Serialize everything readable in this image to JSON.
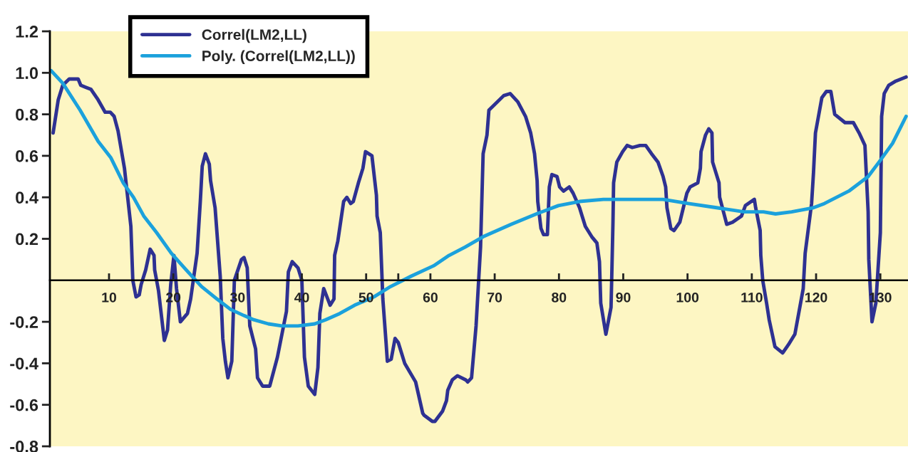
{
  "chart_data": {
    "type": "line",
    "series": [
      {
        "name": "Correl(LM2,LL)",
        "color": "#2e3192",
        "x": [
          1.3,
          2.1,
          2.8,
          3.8,
          5.2,
          5.6,
          6.4,
          7.2,
          8.3,
          9.4,
          10.2,
          10.8,
          11.4,
          12.4,
          13.4,
          13.7,
          14.2,
          14.7,
          15.0,
          15.7,
          16.4,
          17.0,
          17.1,
          17.7,
          18.6,
          19.1,
          19.6,
          20.1,
          20.5,
          21.1,
          22.2,
          22.7,
          23.7,
          24.2,
          24.5,
          25.0,
          25.6,
          25.8,
          26.5,
          27.3,
          27.7,
          28.1,
          28.5,
          29.1,
          29.5,
          30.6,
          31.0,
          31.5,
          31.9,
          32.8,
          33.1,
          33.9,
          35.0,
          36.2,
          37.6,
          37.9,
          38.5,
          39.4,
          40.0,
          40.4,
          41.0,
          42.0,
          42.5,
          42.8,
          43.4,
          44.4,
          45.0,
          45.1,
          45.6,
          46.5,
          47.0,
          47.6,
          48.0,
          48.8,
          49.5,
          49.9,
          50.9,
          51.6,
          51.7,
          52.2,
          52.6,
          53.1,
          53.3,
          53.9,
          54.5,
          55.0,
          56.0,
          57.7,
          58.8,
          59.0,
          60.3,
          60.7,
          61.9,
          62.5,
          62.7,
          63.4,
          64.2,
          65.5,
          65.8,
          66.4,
          67.1,
          67.8,
          68.2,
          68.8,
          69.1,
          71.4,
          72.4,
          73.6,
          74.8,
          75.6,
          76.2,
          76.6,
          76.7,
          77.2,
          77.6,
          78.2,
          78.5,
          78.9,
          79.7,
          80.1,
          80.7,
          81.6,
          82.2,
          83.2,
          83.6,
          84.1,
          85.1,
          85.9,
          86.3,
          86.5,
          87.3,
          88.1,
          88.2,
          88.4,
          88.5,
          89.0,
          89.9,
          90.6,
          91.4,
          92.6,
          93.5,
          94.4,
          95.4,
          96.2,
          96.6,
          96.8,
          97.4,
          97.9,
          98.8,
          99.9,
          100.4,
          101.6,
          102.0,
          102.1,
          102.8,
          103.3,
          103.8,
          103.9,
          104.9,
          105.0,
          106.1,
          107.0,
          108.4,
          109.0,
          110.4,
          110.6,
          111.3,
          111.4,
          111.7,
          112.3,
          112.7,
          113.6,
          114.8,
          115.7,
          116.7,
          118.0,
          118.3,
          119.3,
          119.6,
          119.9,
          120.9,
          121.6,
          122.3,
          122.9,
          124.5,
          125.8,
          126.7,
          127.6,
          128.1,
          128.2,
          128.7,
          129.3,
          130.0,
          130.2,
          130.6,
          131.3,
          132.4,
          134.0
        ],
        "values": [
          0.71,
          0.87,
          0.94,
          0.97,
          0.97,
          0.94,
          0.93,
          0.92,
          0.87,
          0.81,
          0.81,
          0.79,
          0.72,
          0.54,
          0.26,
          0.0,
          -0.08,
          -0.07,
          -0.02,
          0.05,
          0.15,
          0.12,
          0.05,
          -0.05,
          -0.29,
          -0.24,
          -0.02,
          0.12,
          -0.04,
          -0.2,
          -0.16,
          -0.09,
          0.13,
          0.38,
          0.55,
          0.61,
          0.56,
          0.48,
          0.35,
          0.02,
          -0.28,
          -0.39,
          -0.47,
          -0.39,
          0.0,
          0.1,
          0.11,
          0.06,
          -0.22,
          -0.33,
          -0.47,
          -0.51,
          -0.51,
          -0.37,
          -0.15,
          0.04,
          0.09,
          0.06,
          0.0,
          -0.37,
          -0.51,
          -0.55,
          -0.42,
          -0.16,
          -0.04,
          -0.12,
          -0.09,
          0.12,
          0.19,
          0.38,
          0.4,
          0.37,
          0.38,
          0.47,
          0.54,
          0.62,
          0.6,
          0.41,
          0.31,
          0.23,
          -0.09,
          -0.3,
          -0.39,
          -0.38,
          -0.28,
          -0.3,
          -0.4,
          -0.49,
          -0.64,
          -0.65,
          -0.68,
          -0.68,
          -0.63,
          -0.58,
          -0.53,
          -0.48,
          -0.46,
          -0.48,
          -0.49,
          -0.47,
          -0.22,
          0.16,
          0.61,
          0.7,
          0.82,
          0.89,
          0.9,
          0.86,
          0.79,
          0.71,
          0.61,
          0.48,
          0.38,
          0.25,
          0.22,
          0.22,
          0.45,
          0.51,
          0.5,
          0.45,
          0.43,
          0.45,
          0.42,
          0.35,
          0.31,
          0.26,
          0.21,
          0.18,
          0.09,
          -0.11,
          -0.26,
          -0.13,
          0.0,
          0.28,
          0.47,
          0.57,
          0.62,
          0.65,
          0.64,
          0.65,
          0.65,
          0.61,
          0.57,
          0.5,
          0.45,
          0.35,
          0.25,
          0.24,
          0.28,
          0.42,
          0.45,
          0.47,
          0.54,
          0.62,
          0.7,
          0.73,
          0.71,
          0.57,
          0.47,
          0.4,
          0.27,
          0.28,
          0.31,
          0.36,
          0.39,
          0.35,
          0.24,
          0.12,
          0.0,
          -0.11,
          -0.19,
          -0.32,
          -0.35,
          -0.31,
          -0.26,
          -0.04,
          0.13,
          0.37,
          0.52,
          0.71,
          0.88,
          0.91,
          0.91,
          0.8,
          0.76,
          0.76,
          0.71,
          0.65,
          0.33,
          0.1,
          -0.2,
          -0.11,
          0.23,
          0.79,
          0.9,
          0.94,
          0.96,
          0.98
        ]
      },
      {
        "name": "Poly. (Correl(LM2,LL))",
        "color": "#1ba1dc",
        "x": [
          1.0,
          2.8,
          5.5,
          8.3,
          10.3,
          12.2,
          13.8,
          15.4,
          17.4,
          19.7,
          22.3,
          24.4,
          26.8,
          28.9,
          31.0,
          32.5,
          34.8,
          36.9,
          39.4,
          42.0,
          43.7,
          45.9,
          48.2,
          51.2,
          53.8,
          57.0,
          60.5,
          62.9,
          65.4,
          68.2,
          72.6,
          76.5,
          79.9,
          83.2,
          86.9,
          92.3,
          96.2,
          100.1,
          104.5,
          108.8,
          111.8,
          113.7,
          116.2,
          119.6,
          121.3,
          125.1,
          128.1,
          129.8,
          131.9,
          134.0
        ],
        "values": [
          1.01,
          0.95,
          0.82,
          0.67,
          0.59,
          0.47,
          0.4,
          0.31,
          0.23,
          0.13,
          0.04,
          -0.03,
          -0.09,
          -0.14,
          -0.17,
          -0.19,
          -0.21,
          -0.22,
          -0.22,
          -0.21,
          -0.19,
          -0.16,
          -0.12,
          -0.08,
          -0.03,
          0.02,
          0.07,
          0.12,
          0.16,
          0.21,
          0.27,
          0.32,
          0.36,
          0.38,
          0.39,
          0.39,
          0.39,
          0.37,
          0.35,
          0.33,
          0.33,
          0.32,
          0.33,
          0.35,
          0.37,
          0.43,
          0.5,
          0.57,
          0.66,
          0.79
        ]
      }
    ],
    "xlim": [
      0.8,
      134.3
    ],
    "xticks": [
      10,
      20,
      30,
      40,
      50,
      {
        "value": 55,
        "label": null
      },
      60,
      70,
      80,
      90,
      100,
      110,
      120,
      130
    ],
    "ylim": [
      -0.8,
      1.2
    ],
    "yticks": [
      -0.8,
      -0.6,
      -0.4,
      -0.2,
      0.2,
      0.4,
      0.6,
      0.8,
      {
        "value": 1.0,
        "label": "1.0"
      },
      {
        "value": 1.2,
        "label": "1.2"
      }
    ],
    "legend": "top left"
  }
}
